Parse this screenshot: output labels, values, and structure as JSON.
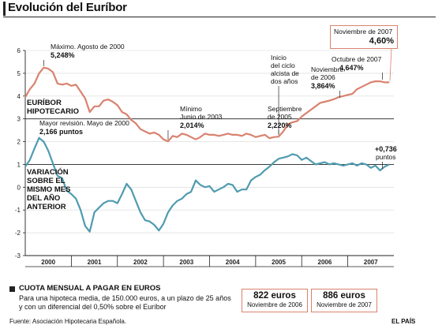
{
  "title": "Evolución del Euríbor",
  "chart_data": {
    "type": "line",
    "ylim": [
      -3,
      6
    ],
    "y_ticks": [
      "6",
      "5",
      "4",
      "3",
      "2",
      "1",
      "0",
      "-1",
      "-2",
      "-3"
    ],
    "x_range": [
      2000.0,
      2008.0
    ],
    "year_labels": [
      "2000",
      "2001",
      "2002",
      "2003",
      "2004",
      "2005",
      "2006",
      "2007"
    ],
    "grid": "horizontal-3-1 only; vertical separators",
    "series": [
      {
        "name": "EURÍBOR HIPOTECARIO",
        "color": "#d9826f",
        "x": [
          2000.0,
          2000.1,
          2000.2,
          2000.3,
          2000.4,
          2000.5,
          2000.6,
          2000.7,
          2000.8,
          2000.9,
          2001.0,
          2001.1,
          2001.2,
          2001.3,
          2001.4,
          2001.5,
          2001.6,
          2001.7,
          2001.8,
          2001.9,
          2002.0,
          2002.1,
          2002.2,
          2002.3,
          2002.4,
          2002.5,
          2002.6,
          2002.7,
          2002.8,
          2002.9,
          2003.0,
          2003.1,
          2003.2,
          2003.3,
          2003.4,
          2003.5,
          2003.6,
          2003.7,
          2003.8,
          2003.9,
          2004.0,
          2004.1,
          2004.2,
          2004.3,
          2004.4,
          2004.5,
          2004.6,
          2004.7,
          2004.8,
          2004.9,
          2005.0,
          2005.1,
          2005.2,
          2005.3,
          2005.4,
          2005.5,
          2005.6,
          2005.7,
          2005.8,
          2005.9,
          2006.0,
          2006.1,
          2006.2,
          2006.3,
          2006.4,
          2006.5,
          2006.6,
          2006.7,
          2006.8,
          2006.9,
          2007.0,
          2007.1,
          2007.2,
          2007.3,
          2007.4,
          2007.5,
          2007.6,
          2007.7,
          2007.8,
          2007.9
        ],
        "values": [
          3.95,
          4.3,
          4.55,
          5.0,
          5.248,
          5.2,
          5.05,
          4.55,
          4.5,
          4.55,
          4.45,
          4.5,
          4.2,
          3.9,
          3.3,
          3.55,
          3.55,
          3.8,
          3.85,
          3.75,
          3.6,
          3.3,
          3.2,
          2.95,
          2.8,
          2.55,
          2.45,
          2.35,
          2.4,
          2.3,
          2.1,
          2.014,
          2.25,
          2.2,
          2.35,
          2.3,
          2.2,
          2.1,
          2.2,
          2.35,
          2.3,
          2.3,
          2.25,
          2.3,
          2.35,
          2.3,
          2.3,
          2.25,
          2.35,
          2.3,
          2.2,
          2.25,
          2.3,
          2.15,
          2.2,
          2.22,
          2.45,
          2.75,
          2.85,
          2.9,
          3.1,
          3.25,
          3.4,
          3.55,
          3.7,
          3.75,
          3.8,
          3.864,
          3.95,
          4.0,
          4.05,
          4.1,
          4.3,
          4.4,
          4.5,
          4.6,
          4.65,
          4.647,
          4.6,
          4.6
        ]
      },
      {
        "name": "VARIACIÓN SOBRE EL MISMO MES DEL AÑO ANTERIOR",
        "color": "#4f9bb0",
        "x": [
          2000.0,
          2000.1,
          2000.2,
          2000.3,
          2000.4,
          2000.5,
          2000.6,
          2000.7,
          2000.8,
          2000.9,
          2001.0,
          2001.1,
          2001.2,
          2001.3,
          2001.4,
          2001.5,
          2001.6,
          2001.7,
          2001.8,
          2001.9,
          2002.0,
          2002.1,
          2002.2,
          2002.3,
          2002.4,
          2002.5,
          2002.6,
          2002.7,
          2002.8,
          2002.9,
          2003.0,
          2003.1,
          2003.2,
          2003.3,
          2003.4,
          2003.5,
          2003.6,
          2003.7,
          2003.8,
          2003.9,
          2004.0,
          2004.1,
          2004.2,
          2004.3,
          2004.4,
          2004.5,
          2004.6,
          2004.7,
          2004.8,
          2004.9,
          2005.0,
          2005.1,
          2005.2,
          2005.3,
          2005.4,
          2005.5,
          2005.6,
          2005.7,
          2005.8,
          2005.9,
          2006.0,
          2006.1,
          2006.2,
          2006.3,
          2006.4,
          2006.5,
          2006.6,
          2006.7,
          2006.8,
          2006.9,
          2007.0,
          2007.1,
          2007.2,
          2007.3,
          2007.4,
          2007.5,
          2007.6,
          2007.7,
          2007.8,
          2007.9
        ],
        "values": [
          0.9,
          1.2,
          1.7,
          2.166,
          2.0,
          1.6,
          1.05,
          0.5,
          0.4,
          -0.15,
          -0.3,
          -0.5,
          -1.0,
          -1.7,
          -1.95,
          -1.1,
          -0.9,
          -0.7,
          -0.6,
          -0.6,
          -0.7,
          -0.3,
          0.15,
          -0.1,
          -0.6,
          -1.1,
          -1.45,
          -1.5,
          -1.65,
          -1.9,
          -1.6,
          -1.1,
          -0.8,
          -0.6,
          -0.5,
          -0.3,
          -0.2,
          0.3,
          0.1,
          0.0,
          0.05,
          -0.2,
          -0.1,
          0.0,
          0.15,
          0.1,
          -0.2,
          -0.1,
          -0.1,
          0.3,
          0.45,
          0.55,
          0.75,
          0.9,
          1.1,
          1.25,
          1.3,
          1.35,
          1.45,
          1.4,
          1.2,
          1.3,
          1.15,
          1.0,
          1.05,
          1.1,
          1.0,
          1.05,
          1.0,
          0.95,
          1.0,
          1.05,
          0.95,
          1.05,
          1.0,
          0.85,
          0.95,
          0.736,
          0.9,
          1.0
        ]
      }
    ],
    "annotations": {
      "max_line1": "Máximo. Agosto de 2000",
      "max_line2": "5,248%",
      "min_line1": "Mínimo",
      "min_line2": "Junio de 2003",
      "min_line3": "2,014%",
      "sep_line1": "Septiembre",
      "sep_line2": "de 2005",
      "sep_line3": "2,220%",
      "inicio_line1": "Inicio",
      "inicio_line2": "del ciclo",
      "inicio_line3": "alcista de",
      "inicio_line4": "dos años",
      "nov06_line1": "Noviembre",
      "nov06_line2": "de 2006",
      "nov06_line3": "3,864%",
      "oct07_line1": "Octubre de 2007",
      "oct07_line2": "4,647%",
      "nov07_line1": "Noviembre de 2007",
      "nov07_line2": "4,60%",
      "rev_line1": "Mayor revisión. Mayo de 2000",
      "rev_line2": "2,166 puntos",
      "last_line1": "+0,736",
      "last_line2": "puntos"
    },
    "labels": {
      "hip_line1": "EURÍBOR",
      "hip_line2": "HIPOTECARIO",
      "var_line1": "VARIACIÓN",
      "var_line2": "SOBRE EL",
      "var_line3": "MISMO MES",
      "var_line4": "DEL AÑO",
      "var_line5": "ANTERIOR"
    }
  },
  "cuota": {
    "title": "CUOTA MENSUAL A PAGAR EN EUROS",
    "desc": "Para una hipoteca media, de 150.000 euros, a un plazo de 25 años y con un diferencial del 0,50% sobre el Euríbor",
    "box1_amount": "822 euros",
    "box1_label": "Noviembre de 2006",
    "box2_amount": "886 euros",
    "box2_label": "Noviembre de 2007"
  },
  "source": "Fuente: Asociación Hipotecaria Española.",
  "brand": "EL PAÍS"
}
